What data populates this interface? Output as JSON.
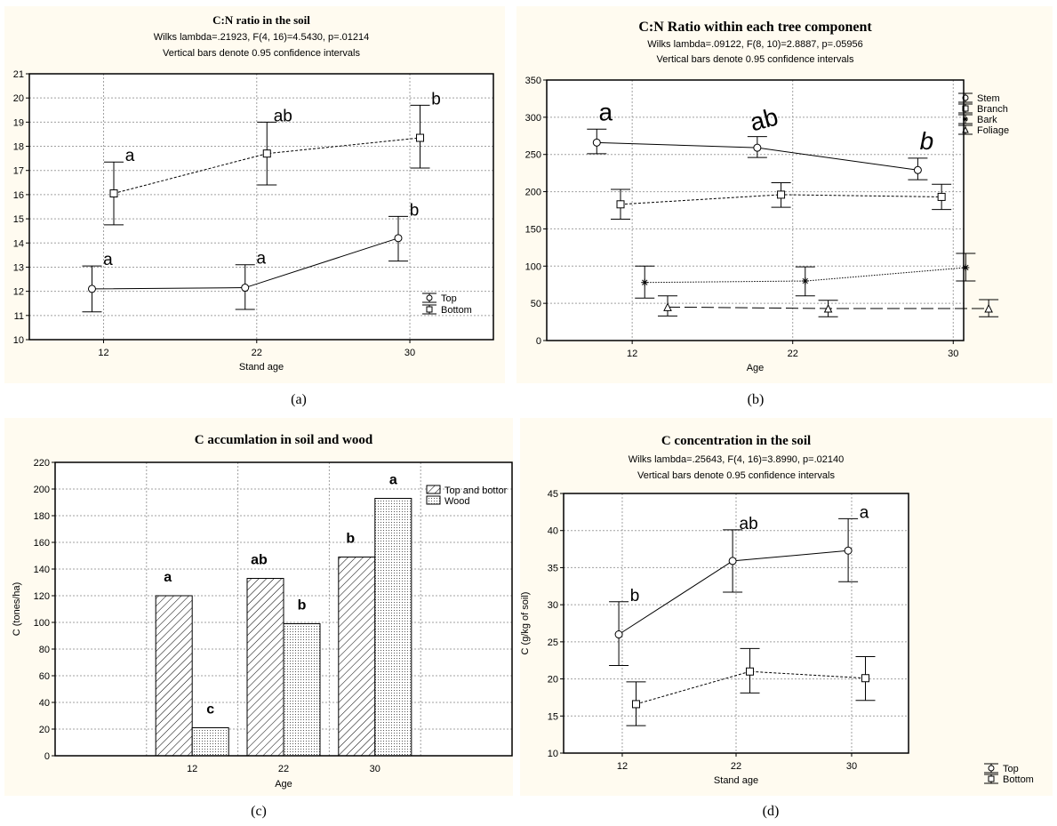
{
  "colors": {
    "panel_bg": "#fffbf0",
    "plot_bg": "#ffffff",
    "ink": "#000000",
    "grid": "#a0a0a0"
  },
  "captions": [
    "(a)",
    "(b)",
    "(c)",
    "(d)"
  ],
  "chart_data": [
    {
      "id": "a",
      "type": "line",
      "title": "C:N ratio in the soil",
      "subtitle": [
        "Wilks lambda=.21923, F(4, 16)=4.5430, p=.01214",
        "Vertical bars denote 0.95 confidence intervals"
      ],
      "xlabel": "Stand age",
      "ylabel": "",
      "categories": [
        "12",
        "22",
        "30"
      ],
      "ylim": [
        10,
        21
      ],
      "yticks": [
        10,
        11,
        12,
        13,
        14,
        15,
        16,
        17,
        18,
        19,
        20,
        21
      ],
      "grid": true,
      "legend": "bottom-right",
      "series": [
        {
          "name": "Top",
          "marker": "circle",
          "line": "solid",
          "values": [
            12.1,
            12.15,
            14.2
          ],
          "ci_low": [
            11.15,
            11.25,
            13.25
          ],
          "ci_high": [
            13.05,
            13.1,
            15.1
          ],
          "letters": [
            "a",
            "a",
            "b"
          ]
        },
        {
          "name": "Bottom",
          "marker": "square",
          "line": "dashed",
          "values": [
            16.05,
            17.7,
            18.35
          ],
          "ci_low": [
            14.75,
            16.4,
            17.1
          ],
          "ci_high": [
            17.35,
            19.0,
            19.7
          ],
          "letters": [
            "a",
            "ab",
            "b"
          ]
        }
      ]
    },
    {
      "id": "b",
      "type": "line",
      "title": "C:N Ratio within each tree component",
      "subtitle": [
        "Wilks lambda=.09122, F(8, 10)=2.8887, p=.05956",
        "Vertical bars denote 0.95 confidence intervals"
      ],
      "xlabel": "Age",
      "ylabel": "",
      "categories": [
        "12",
        "22",
        "30"
      ],
      "ylim": [
        0,
        350
      ],
      "yticks": [
        0,
        50,
        100,
        150,
        200,
        250,
        300,
        350
      ],
      "grid": true,
      "legend": "top-right",
      "series": [
        {
          "name": "Stem",
          "marker": "circle",
          "line": "solid",
          "values": [
            266,
            259,
            229
          ],
          "ci_low": [
            251,
            246,
            216
          ],
          "ci_high": [
            284,
            274,
            245
          ],
          "letters": [
            "a",
            "ab",
            "b"
          ]
        },
        {
          "name": "Branch",
          "marker": "square",
          "line": "dashed",
          "values": [
            183,
            196,
            193
          ],
          "ci_low": [
            163,
            179,
            176
          ],
          "ci_high": [
            203,
            212,
            210
          ],
          "letters": [
            "",
            "",
            ""
          ]
        },
        {
          "name": "Bark",
          "marker": "asterisk",
          "line": "dotted",
          "values": [
            78,
            80,
            98
          ],
          "ci_low": [
            57,
            60,
            80
          ],
          "ci_high": [
            100,
            99,
            117
          ],
          "letters": [
            "",
            "",
            ""
          ]
        },
        {
          "name": "Foliage",
          "marker": "triangle",
          "line": "longdash",
          "values": [
            45,
            43,
            43
          ],
          "ci_low": [
            33,
            32,
            32
          ],
          "ci_high": [
            60,
            54,
            55
          ],
          "letters": [
            "",
            "",
            ""
          ]
        }
      ]
    },
    {
      "id": "c",
      "type": "bar",
      "title": "C accumlation in soil and wood",
      "xlabel": "Age",
      "ylabel": "C (tones/ha)",
      "categories": [
        "12",
        "22",
        "30"
      ],
      "ylim": [
        0,
        220
      ],
      "yticks": [
        0,
        20,
        40,
        60,
        80,
        100,
        120,
        140,
        160,
        180,
        200,
        220
      ],
      "grid": true,
      "legend": "top-right",
      "series": [
        {
          "name": "Top and bottom",
          "legend_label": "Top and bottor",
          "pattern": "hatch",
          "values": [
            120,
            133,
            149
          ],
          "letters": [
            "a",
            "ab",
            "b"
          ]
        },
        {
          "name": "Wood",
          "legend_label": "Wood",
          "pattern": "dots",
          "values": [
            21,
            99,
            193
          ],
          "letters": [
            "c",
            "b",
            "a"
          ]
        }
      ]
    },
    {
      "id": "d",
      "type": "line",
      "title": "C concentration in the soil",
      "subtitle": [
        "Wilks lambda=.25643, F(4, 16)=3.8990, p=.02140",
        "Vertical bars denote 0.95 confidence intervals"
      ],
      "xlabel": "Stand age",
      "ylabel": "C (g/kg of soil)",
      "categories": [
        "12",
        "22",
        "30"
      ],
      "ylim": [
        10,
        45
      ],
      "yticks": [
        10,
        15,
        20,
        25,
        30,
        35,
        40,
        45
      ],
      "grid": true,
      "legend": "bottom-right-outside",
      "series": [
        {
          "name": "Top",
          "marker": "circle",
          "line": "solid",
          "values": [
            26.0,
            35.9,
            37.3
          ],
          "ci_low": [
            21.8,
            31.7,
            33.1
          ],
          "ci_high": [
            30.4,
            40.1,
            41.6
          ],
          "letters": [
            "b",
            "ab",
            "a"
          ]
        },
        {
          "name": "Bottom",
          "marker": "square",
          "line": "dashed",
          "values": [
            16.6,
            21.0,
            20.1
          ],
          "ci_low": [
            13.7,
            18.1,
            17.1
          ],
          "ci_high": [
            19.6,
            24.1,
            23.0
          ],
          "letters": [
            "",
            "",
            ""
          ]
        }
      ]
    }
  ]
}
